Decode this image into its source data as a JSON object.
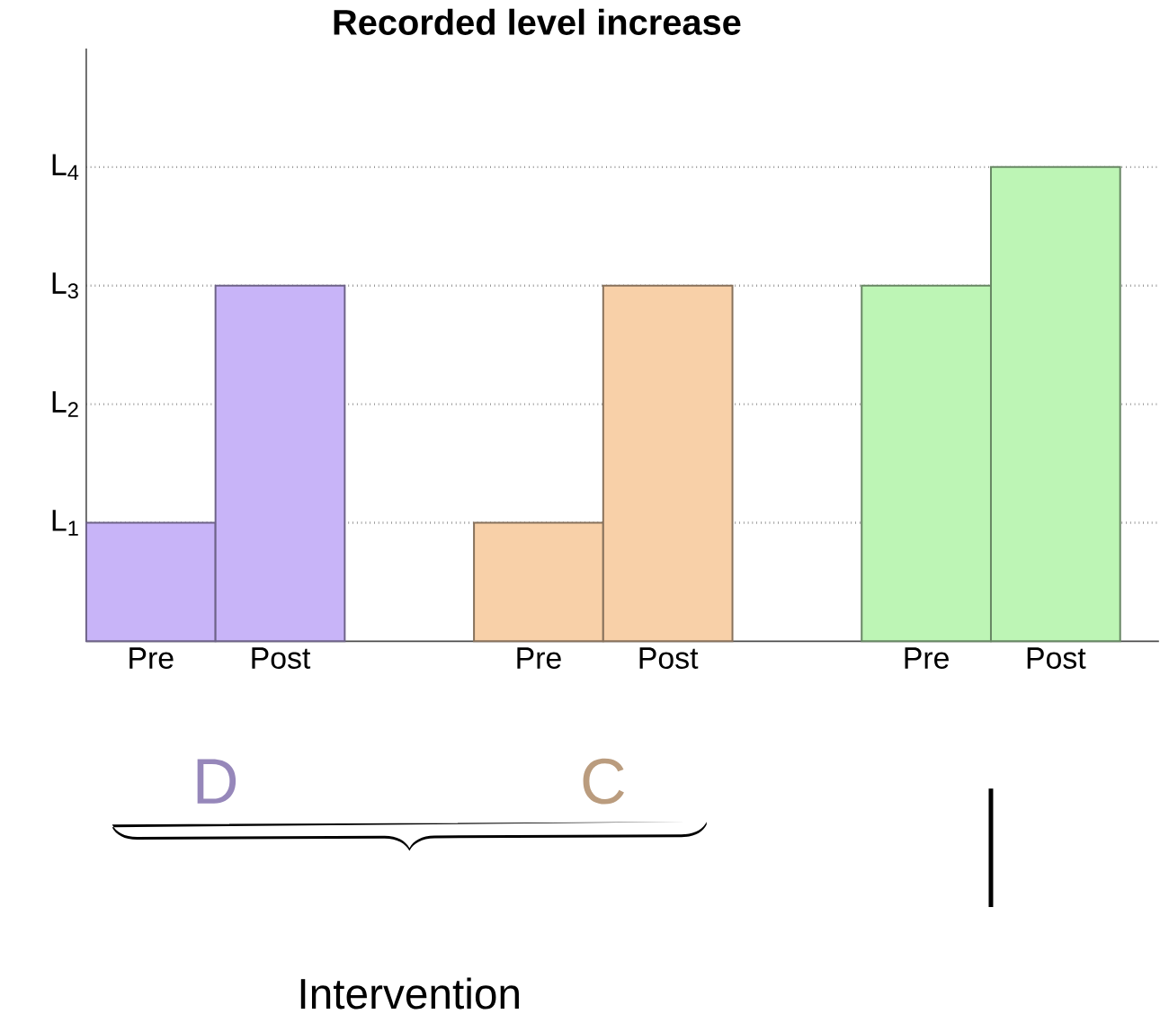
{
  "chart_data": {
    "type": "bar",
    "title": "Recorded level increase",
    "categories": [
      "Pre",
      "Post",
      null,
      "Pre",
      "Post",
      null,
      "Pre",
      "Post"
    ],
    "values": [
      1,
      3,
      null,
      1,
      3,
      null,
      3,
      4
    ],
    "colors": [
      "#c8b4f8",
      "#c8b4f8",
      "#ffffff",
      "#f8d0a8",
      "#f8d0a8",
      "#ffffff",
      "#bdf5b5",
      "#bdf5b5"
    ],
    "ylim": [
      0,
      5
    ],
    "yticks": [
      {
        "value": 1,
        "label": "L$_{1}$"
      },
      {
        "value": 2,
        "label": "L$_{2}$"
      },
      {
        "value": 3,
        "label": "L$_{3}$"
      },
      {
        "value": 4,
        "label": "L$_{4}$"
      }
    ],
    "grid": "y",
    "annotations": [
      "D",
      "C",
      "Intervention"
    ]
  }
}
